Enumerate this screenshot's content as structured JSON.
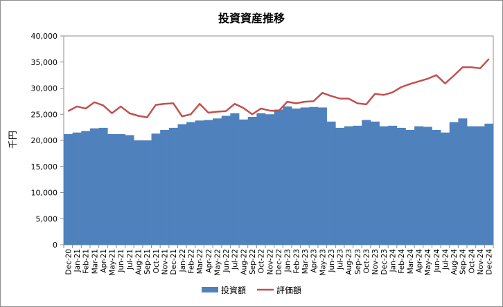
{
  "chart_data": {
    "type": "bar",
    "title": "投資資産推移",
    "ylabel": "千円",
    "xlabel": "",
    "ylim": [
      0,
      40000
    ],
    "yticks": [
      0,
      5000,
      10000,
      15000,
      20000,
      25000,
      30000,
      35000,
      40000
    ],
    "ytick_labels": [
      "0",
      "5,000",
      "10,000",
      "15,000",
      "20,000",
      "25,000",
      "30,000",
      "35,000",
      "40,000"
    ],
    "grid": false,
    "legend": "bottom",
    "categories": [
      "Dec-20",
      "Jan-21",
      "Feb-21",
      "Mar-21",
      "Apr-21",
      "May-21",
      "Jun-21",
      "Jul-21",
      "Aug-21",
      "Sep-21",
      "Oct-21",
      "Nov-21",
      "Dec-21",
      "Jan-22",
      "Feb-22",
      "Mar-22",
      "Apr-22",
      "May-22",
      "Jun-22",
      "Jul-22",
      "Aug-22",
      "Sep-22",
      "Oct-22",
      "Nov-22",
      "Dec-22",
      "Jan-23",
      "Feb-23",
      "Mar-23",
      "Apr-23",
      "May-23",
      "Jun-23",
      "Jul-23",
      "Aug-23",
      "Sep-23",
      "Oct-23",
      "Nov-23",
      "Dec-23",
      "Jan-24",
      "Feb-24",
      "Mar-24",
      "Apr-24",
      "May-24",
      "Jun-24",
      "Jul-24",
      "Aug-24",
      "Sep-24",
      "Oct-24",
      "Nov-24",
      "Dec-24"
    ],
    "series": [
      {
        "name": "投資額",
        "type": "bar",
        "color": "#4f81bd",
        "values": [
          21200,
          21500,
          21800,
          22300,
          22400,
          21200,
          21200,
          21000,
          20000,
          20000,
          21300,
          22000,
          22400,
          23100,
          23500,
          23800,
          23900,
          24200,
          24700,
          25200,
          24000,
          24500,
          25200,
          25000,
          25900,
          26500,
          26100,
          26300,
          26400,
          26300,
          23600,
          22400,
          22700,
          22800,
          23900,
          23600,
          22700,
          22800,
          22400,
          22000,
          22700,
          22600,
          22000,
          21500,
          23500,
          24200,
          22700,
          22700,
          23200
        ]
      },
      {
        "name": "評価額",
        "type": "line",
        "color": "#c0504d",
        "values": [
          25600,
          26500,
          26100,
          27300,
          26700,
          25200,
          26500,
          25200,
          24700,
          24400,
          26800,
          27000,
          27100,
          24600,
          25000,
          27000,
          25300,
          25500,
          25600,
          27000,
          26200,
          25000,
          26100,
          25700,
          25600,
          27400,
          27100,
          27400,
          27500,
          29100,
          28500,
          28000,
          28000,
          27100,
          26900,
          28900,
          28700,
          29200,
          30200,
          30800,
          31300,
          31800,
          32500,
          30900,
          32400,
          34000,
          34000,
          33800,
          35600
        ]
      }
    ]
  }
}
